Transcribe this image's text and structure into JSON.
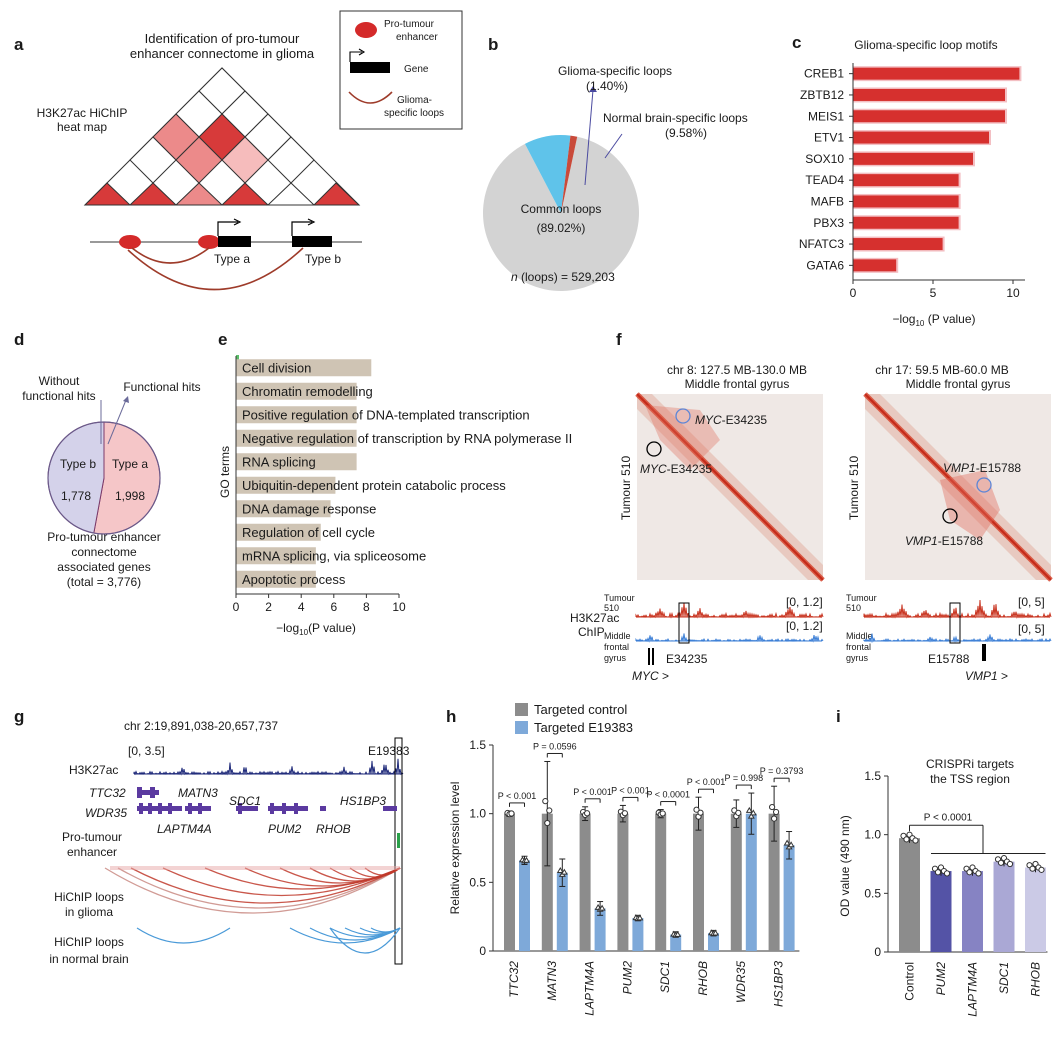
{
  "panel_labels": [
    "a",
    "b",
    "c",
    "d",
    "e",
    "f",
    "g",
    "h",
    "i"
  ],
  "a": {
    "title_line1": "Identification of pro-tumour",
    "title_line2": "enhancer connectome in glioma",
    "heatmap_label_line1": "H3K27ac HiChIP",
    "heatmap_label_line2": "heat map",
    "legend": {
      "enhancer_line1": "Pro-tumour",
      "enhancer_line2": "enhancer",
      "gene": "Gene",
      "loops_line1": "Glioma-",
      "loops_line2": "specific loops"
    },
    "type_a": "Type a",
    "type_b": "Type b",
    "colors": {
      "enhancer": "#d42a2a",
      "loop": "#9e3b2a",
      "heat_dark": "#d73a3a",
      "heat_mid": "#ec8a8a"
    }
  },
  "b": {
    "chart_data": {
      "type": "pie",
      "slices": [
        {
          "name": "Common loops",
          "value": 89.02,
          "display": "(89.02%)",
          "color": "#d3d3d3"
        },
        {
          "name": "Normal brain-specific loops",
          "value": 9.58,
          "display": "(9.58%)",
          "color": "#5fc3ea"
        },
        {
          "name": "Glioma-specific loops",
          "value": 1.4,
          "display": "(1.40%)",
          "color": "#c94a3a"
        }
      ],
      "n_prefix": "n",
      "n_suffix": " (loops) = 529,203"
    }
  },
  "c": {
    "chart_data": {
      "type": "bar",
      "orientation": "horizontal",
      "title": "Glioma-specific loop motifs",
      "categories": [
        "CREB1",
        "ZBTB12",
        "MEIS1",
        "ETV1",
        "SOX10",
        "TEAD4",
        "MAFB",
        "PBX3",
        "NFATC3",
        "GATA6"
      ],
      "values": [
        10.4,
        9.5,
        9.5,
        8.5,
        7.5,
        6.6,
        6.6,
        6.6,
        5.6,
        2.7
      ],
      "xlim": [
        0,
        10.5
      ],
      "xticks": [
        0,
        5,
        10
      ],
      "xlabel_pre": "−log",
      "xlabel_sub": "10",
      "xlabel_post": " (P value)",
      "color": "#d6302e"
    }
  },
  "d": {
    "chart_data": {
      "type": "pie",
      "slices": [
        {
          "name": "Type a",
          "value": 1998,
          "display": "1,998",
          "color": "#f5c6c8"
        },
        {
          "name": "Type b",
          "value": 1778,
          "display": "1,778",
          "color": "#d4d2ea"
        }
      ],
      "label_without_line1": "Without",
      "label_without_line2": "functional hits",
      "label_functional": "Functional hits",
      "caption_line1": "Pro-tumour enhancer",
      "caption_line2": "connectome",
      "caption_line3": "associated genes",
      "caption_line4": "(total = 3,776)"
    }
  },
  "e": {
    "chart_data": {
      "type": "bar",
      "orientation": "horizontal",
      "ylabel": "GO terms",
      "categories": [
        "Cell division",
        "Chromatin remodelling",
        "Positive regulation of DNA-templated transcription",
        "Negative regulation of transcription by RNA polymerase II",
        "RNA splicing",
        "Ubiquitin-dependent protein catabolic process",
        "DNA damage response",
        "Regulation of cell cycle",
        "mRNA splicing, via spliceosome",
        "Apoptotic process"
      ],
      "values": [
        8.3,
        7.4,
        7.4,
        7.4,
        7.4,
        6.1,
        5.8,
        5.2,
        4.9,
        4.9
      ],
      "xlim": [
        0,
        10
      ],
      "xticks": [
        0,
        2,
        4,
        6,
        8,
        10
      ],
      "xlabel_pre": "−log",
      "xlabel_sub": "10",
      "xlabel_post": "(P value)",
      "color": "#cfc4b4"
    }
  },
  "f": {
    "left_title_line1": "chr 8: 127.5 MB-130.0 MB",
    "left_title_line2": "Middle frontal gyrus",
    "right_title_line1": "chr 17: 59.5 MB-60.0 MB",
    "right_title_line2": "Middle frontal gyrus",
    "ylabel": "Tumour 510",
    "left_loop_label": "MYC",
    "left_loop_suffix": "-E34235",
    "right_loop_label": "VMP1",
    "right_loop_suffix": "-E15788",
    "chip_label_line1": "H3K27ac",
    "chip_label_line2": "ChIP",
    "track_tumour_line1": "Tumour",
    "track_tumour_line2": "510",
    "track_normal_line1": "Middle",
    "track_normal_line2": "frontal",
    "track_normal_line3": "gyrus",
    "left_range": "[0, 1.2]",
    "right_range": "[0, 5]",
    "left_enhancer": "E34235",
    "right_enhancer": "E15788",
    "left_gene": "MYC",
    "right_gene": "VMP1",
    "gene_arrow": " >"
  },
  "g": {
    "title": "chr 2:19,891,038-20,657,737",
    "range": "[0, 3.5]",
    "enhancer_id": "E19383",
    "track_label": "H3K27ac",
    "genes": [
      "TTC32",
      "MATN3",
      "WDR35",
      "LAPTM4A",
      "SDC1",
      "PUM2",
      "RHOB",
      "HS1BP3"
    ],
    "row_enhancer_line1": "Pro-tumour",
    "row_enhancer_line2": "enhancer",
    "row_glioma_line1": "HiChIP loops",
    "row_glioma_line2": "in glioma",
    "row_normal_line1": "HiChIP loops",
    "row_normal_line2": "in normal brain"
  },
  "h": {
    "chart_data": {
      "type": "bar",
      "ylabel": "Relative expression level",
      "ylim": [
        0,
        1.5
      ],
      "yticks": [
        "0",
        "0.5",
        "1.0",
        "1.5"
      ],
      "categories": [
        "TTC32",
        "MATN3",
        "LAPTM4A",
        "PUM2",
        "SDC1",
        "RHOB",
        "WDR35",
        "HS1BP3"
      ],
      "series": [
        {
          "name": "Targeted control",
          "values": [
            1.0,
            1.0,
            1.0,
            1.0,
            1.0,
            1.0,
            1.0,
            1.0
          ],
          "color": "#8c8c8c"
        },
        {
          "name": "Targeted E19383",
          "values": [
            0.66,
            0.57,
            0.31,
            0.24,
            0.12,
            0.13,
            1.0,
            0.77
          ],
          "color": "#7ea9d9"
        }
      ],
      "p_values": [
        "P < 0.001",
        "P = 0.0596",
        "P < 0.001",
        "P < 0.001",
        "P < 0.0001",
        "P < 0.001",
        "P = 0.998",
        "P = 0.3793"
      ]
    }
  },
  "i": {
    "chart_data": {
      "type": "bar",
      "title_line1": "CRISPRi targets",
      "title_line2": "the TSS region",
      "ylabel": "OD value (490 nm)",
      "ylim": [
        0,
        1.5
      ],
      "yticks": [
        "0",
        "0.5",
        "1.0",
        "1.5"
      ],
      "categories": [
        "Control",
        "PUM2",
        "LAPTM4A",
        "SDC1",
        "RHOB"
      ],
      "values": [
        0.97,
        0.69,
        0.69,
        0.77,
        0.72
      ],
      "colors": [
        "#8c8c8c",
        "#5453a6",
        "#8683c3",
        "#aaa8d5",
        "#cbcae6"
      ],
      "p_value": "P < 0.0001"
    }
  }
}
